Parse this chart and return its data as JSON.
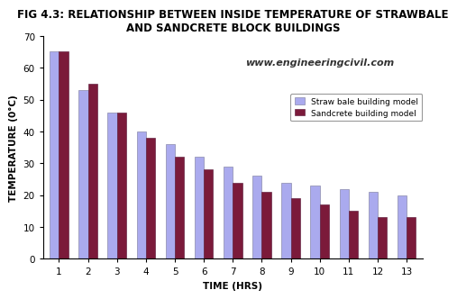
{
  "title": "FIG 4.3: RELATIONSHIP BETWEEN INSIDE TEMPERATURE OF STRAWBALE\nAND SANDCRETE BLOCK BUILDINGS",
  "xlabel": "TIME (HRS)",
  "ylabel": "TEMPERATURE (0°C)",
  "watermark": "www.engineeringcivil.com",
  "categories": [
    1,
    2,
    3,
    4,
    5,
    6,
    7,
    8,
    9,
    10,
    11,
    12,
    13
  ],
  "straw_bale": [
    65,
    53,
    46,
    40,
    36,
    32,
    29,
    26,
    24,
    23,
    22,
    21,
    20
  ],
  "sandcrete": [
    65,
    55,
    46,
    38,
    32,
    28,
    24,
    21,
    19,
    17,
    15,
    13,
    13
  ],
  "straw_color": "#aaaaee",
  "sandcrete_color": "#7B1A3A",
  "legend_straw": "Straw bale building model",
  "legend_sandcrete": "Sandcrete building model",
  "ylim": [
    0,
    70
  ],
  "yticks": [
    0,
    10,
    20,
    30,
    40,
    50,
    60,
    70
  ],
  "background_color": "#ffffff",
  "title_fontsize": 8.5,
  "axis_label_fontsize": 7.5,
  "tick_fontsize": 7.5,
  "legend_fontsize": 6.5,
  "watermark_fontsize": 8,
  "bar_width": 0.32
}
